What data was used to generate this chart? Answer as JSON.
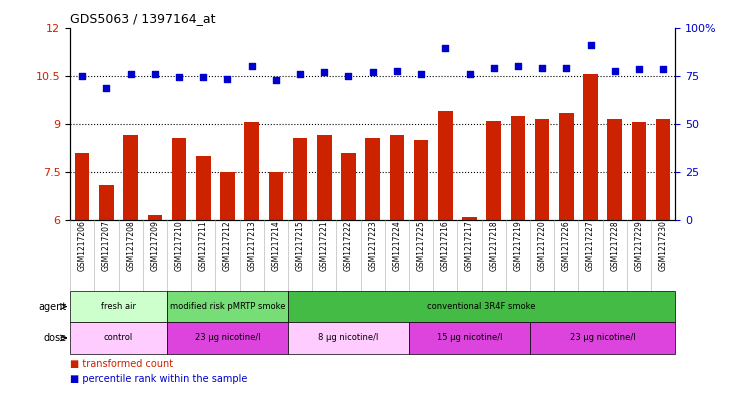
{
  "title": "GDS5063 / 1397164_at",
  "samples": [
    "GSM1217206",
    "GSM1217207",
    "GSM1217208",
    "GSM1217209",
    "GSM1217210",
    "GSM1217211",
    "GSM1217212",
    "GSM1217213",
    "GSM1217214",
    "GSM1217215",
    "GSM1217221",
    "GSM1217222",
    "GSM1217223",
    "GSM1217224",
    "GSM1217225",
    "GSM1217216",
    "GSM1217217",
    "GSM1217218",
    "GSM1217219",
    "GSM1217220",
    "GSM1217226",
    "GSM1217227",
    "GSM1217228",
    "GSM1217229",
    "GSM1217230"
  ],
  "bar_values": [
    8.1,
    7.1,
    8.65,
    6.15,
    8.55,
    8.0,
    7.5,
    9.05,
    7.5,
    8.55,
    8.65,
    8.1,
    8.55,
    8.65,
    8.5,
    9.4,
    6.1,
    9.1,
    9.25,
    9.15,
    9.35,
    10.55,
    9.15,
    9.05,
    9.15
  ],
  "dot_values": [
    10.5,
    10.1,
    10.55,
    10.55,
    10.45,
    10.45,
    10.4,
    10.8,
    10.35,
    10.55,
    10.6,
    10.5,
    10.6,
    10.65,
    10.55,
    11.35,
    10.55,
    10.75,
    10.8,
    10.75,
    10.75,
    11.45,
    10.65,
    10.7,
    10.7
  ],
  "ylim_left": [
    6,
    12
  ],
  "yticks_left": [
    6,
    7.5,
    9,
    10.5,
    12
  ],
  "yticks_right_labels": [
    "0",
    "25",
    "50",
    "75",
    "100%"
  ],
  "bar_color": "#cc2200",
  "dot_color": "#0000cc",
  "dotted_lines": [
    7.5,
    9.0,
    10.5
  ],
  "agent_groups": [
    {
      "label": "fresh air",
      "start": 0,
      "end": 4,
      "color": "#ccffcc"
    },
    {
      "label": "modified risk pMRTP smoke",
      "start": 4,
      "end": 9,
      "color": "#77dd77"
    },
    {
      "label": "conventional 3R4F smoke",
      "start": 9,
      "end": 25,
      "color": "#44bb44"
    }
  ],
  "dose_groups": [
    {
      "label": "control",
      "start": 0,
      "end": 4,
      "color": "#ffccff"
    },
    {
      "label": "23 μg nicotine/l",
      "start": 4,
      "end": 9,
      "color": "#dd44dd"
    },
    {
      "label": "8 μg nicotine/l",
      "start": 9,
      "end": 14,
      "color": "#ffccff"
    },
    {
      "label": "15 μg nicotine/l",
      "start": 14,
      "end": 19,
      "color": "#dd44dd"
    },
    {
      "label": "23 μg nicotine/l",
      "start": 19,
      "end": 25,
      "color": "#dd44dd"
    }
  ],
  "agent_label": "agent",
  "dose_label": "dose",
  "legend_red": "transformed count",
  "legend_blue": "percentile rank within the sample"
}
